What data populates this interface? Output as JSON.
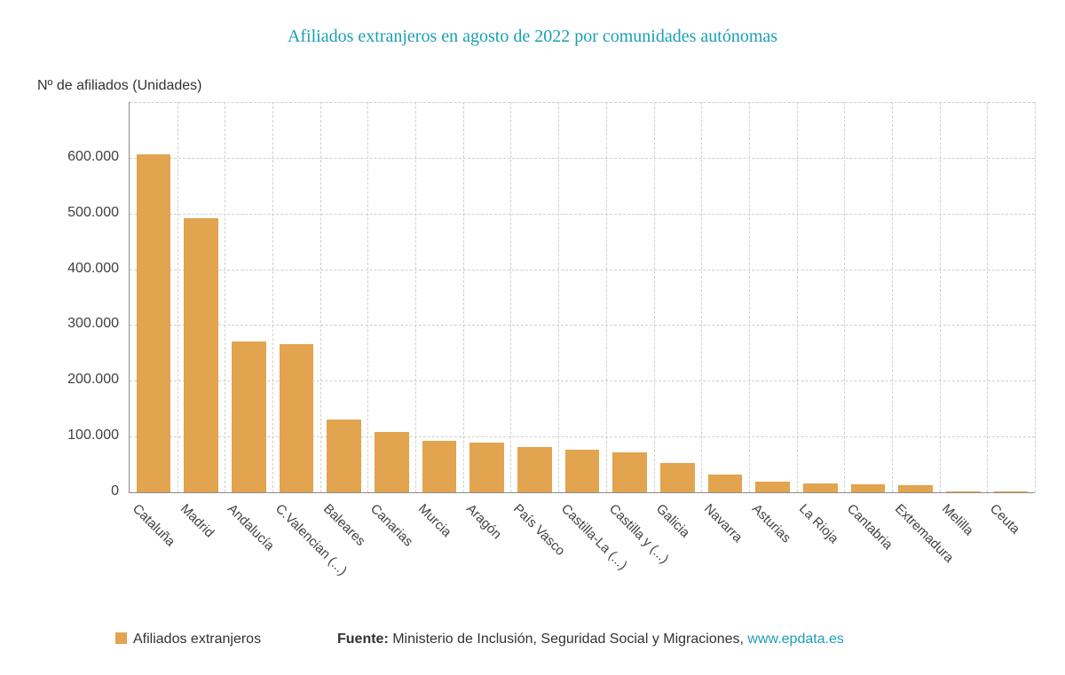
{
  "title": "Afiliados extranjeros en agosto de 2022 por comunidades autónomas",
  "y_axis_title": "Nº de afiliados (Unidades)",
  "legend": {
    "label": "Afiliados extranjeros"
  },
  "source": {
    "label": "Fuente:",
    "text": " Ministerio de Inclusión, Seguridad Social y Migraciones, ",
    "link": "www.epdata.es"
  },
  "colors": {
    "bar": "#e2a44f",
    "title": "#1a9fb5",
    "link": "#1a9fb5",
    "axis_text": "#404040",
    "grid": "#cfcfcf"
  },
  "chart_data": {
    "type": "bar",
    "title": "Afiliados extranjeros en agosto de 2022 por comunidades autónomas",
    "xlabel": "",
    "ylabel": "Nº de afiliados (Unidades)",
    "categories": [
      "Cataluña",
      "Madrid",
      "Andalucía",
      "C.Valencian (...)",
      "Baleares",
      "Canarias",
      "Murcia",
      "Aragón",
      "País Vasco",
      "Castilla-La (...)",
      "Castilla y (...)",
      "Galicia",
      "Navarra",
      "Asturias",
      "La Rioja",
      "Cantabria",
      "Extremadura",
      "Melilla",
      "Ceuta"
    ],
    "values": [
      606000,
      491000,
      271000,
      266000,
      131000,
      108000,
      92000,
      89000,
      81000,
      76000,
      71000,
      52000,
      32000,
      19000,
      16000,
      14000,
      13000,
      2400,
      1600
    ],
    "series_name": "Afiliados extranjeros",
    "yticks": [
      0,
      100000,
      200000,
      300000,
      400000,
      500000,
      600000
    ],
    "ytick_labels": [
      "0",
      "100.000",
      "200.000",
      "300.000",
      "400.000",
      "500.000",
      "600.000"
    ],
    "ylim": [
      0,
      700000
    ],
    "grid": "dashed-both-axes",
    "legend_position": "bottom-left"
  }
}
